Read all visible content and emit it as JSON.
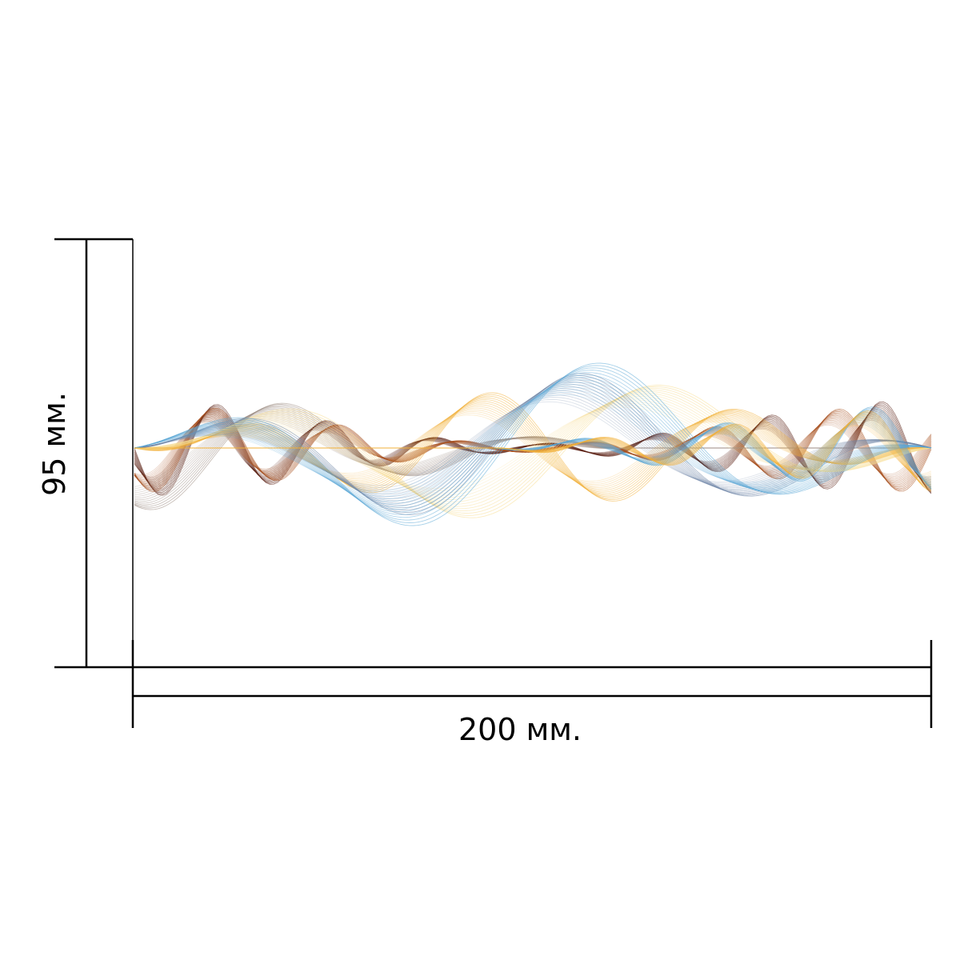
{
  "dimensions": {
    "width_label": "200 мм.",
    "height_label": "95 мм."
  },
  "artwork": {
    "description_name": "wave-pattern",
    "colors": {
      "dark_brown": "#5a1f12",
      "rust": "#a8501e",
      "amber": "#f2b13a",
      "pale_yellow": "#f7dc8e",
      "gray_blue": "#6f86a8",
      "sky_blue": "#5aa7d6",
      "taupe": "#9a8a80"
    }
  }
}
